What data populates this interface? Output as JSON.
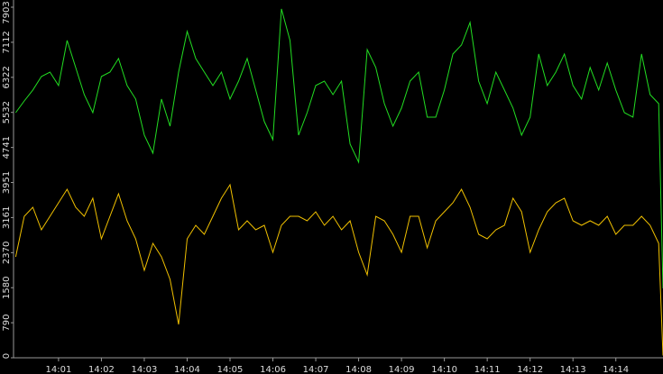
{
  "chart_data": {
    "type": "line",
    "x": [
      0,
      0.2,
      0.4,
      0.6,
      0.8,
      1,
      1.2,
      1.4,
      1.6,
      1.8,
      2,
      2.2,
      2.4,
      2.6,
      2.8,
      3,
      3.2,
      3.4,
      3.6,
      3.8,
      4,
      4.2,
      4.4,
      4.6,
      4.8,
      5,
      5.2,
      5.4,
      5.6,
      5.8,
      6,
      6.2,
      6.4,
      6.6,
      6.8,
      7,
      7.2,
      7.4,
      7.6,
      7.8,
      8,
      8.2,
      8.4,
      8.6,
      8.8,
      9,
      9.2,
      9.4,
      9.6,
      9.8,
      10,
      10.2,
      10.4,
      10.6,
      10.8,
      11,
      11.2,
      11.4,
      11.6,
      11.8,
      12,
      12.2,
      12.4,
      12.6,
      12.8,
      13,
      13.2,
      13.4,
      13.6,
      13.8,
      14,
      14.2,
      14.4,
      14.6,
      14.8,
      15,
      15.1
    ],
    "series": [
      {
        "color": "#22dd22",
        "values": [
          5527,
          5791,
          6035,
          6340,
          6441,
          6137,
          7153,
          6543,
          5933,
          5527,
          6340,
          6441,
          6746,
          6137,
          5832,
          5019,
          4613,
          5832,
          5222,
          6441,
          7356,
          6746,
          6441,
          6137,
          6441,
          5832,
          6238,
          6746,
          6035,
          5324,
          4917,
          7864,
          7153,
          5019,
          5527,
          6137,
          6238,
          5933,
          6238,
          4816,
          4409,
          6949,
          6543,
          5730,
          5222,
          5629,
          6238,
          6441,
          5425,
          5425,
          6035,
          6848,
          7051,
          7559,
          6238,
          5730,
          6441,
          6035,
          5629,
          5019,
          5425,
          6848,
          6137,
          6441,
          6848,
          6137,
          5832,
          6543,
          6035,
          6645,
          6035,
          5527,
          5425,
          6848,
          5933,
          5730,
          1565
        ]
      },
      {
        "color": "#f0c000",
        "values": [
          2276,
          3190,
          3393,
          2885,
          3190,
          3495,
          3800,
          3393,
          3190,
          3597,
          2682,
          3190,
          3698,
          3089,
          2682,
          1971,
          2581,
          2276,
          1768,
          752,
          2682,
          2987,
          2784,
          3190,
          3597,
          3901,
          2885,
          3089,
          2885,
          2987,
          2377,
          2987,
          3190,
          3190,
          3089,
          3292,
          2987,
          3190,
          2885,
          3089,
          2377,
          1869,
          3190,
          3089,
          2784,
          2377,
          3190,
          3190,
          2479,
          3089,
          3292,
          3495,
          3800,
          3393,
          2784,
          2682,
          2885,
          2987,
          3597,
          3292,
          2377,
          2885,
          3292,
          3495,
          3597,
          3089,
          2987,
          3089,
          2987,
          3190,
          2784,
          2987,
          2987,
          3190,
          2987,
          2581,
          50
        ]
      }
    ],
    "xlim": [
      -0.05,
      15.1
    ],
    "xticks": [
      {
        "value": 1,
        "label": "14:01"
      },
      {
        "value": 2,
        "label": "14:02"
      },
      {
        "value": 3,
        "label": "14:03"
      },
      {
        "value": 4,
        "label": "14:04"
      },
      {
        "value": 5,
        "label": "14:05"
      },
      {
        "value": 6,
        "label": "14:06"
      },
      {
        "value": 7,
        "label": "14:07"
      },
      {
        "value": 8,
        "label": "14:08"
      },
      {
        "value": 9,
        "label": "14:09"
      },
      {
        "value": 10,
        "label": "14:10"
      },
      {
        "value": 11,
        "label": "14:11"
      },
      {
        "value": 12,
        "label": "14:12"
      },
      {
        "value": 13,
        "label": "14:13"
      },
      {
        "value": 14,
        "label": "14:14"
      }
    ],
    "ylim": [
      0,
      7903
    ],
    "yticks": [
      0,
      790,
      1580,
      2370,
      3161,
      3951,
      4741,
      5532,
      6322,
      7112,
      7903
    ]
  }
}
